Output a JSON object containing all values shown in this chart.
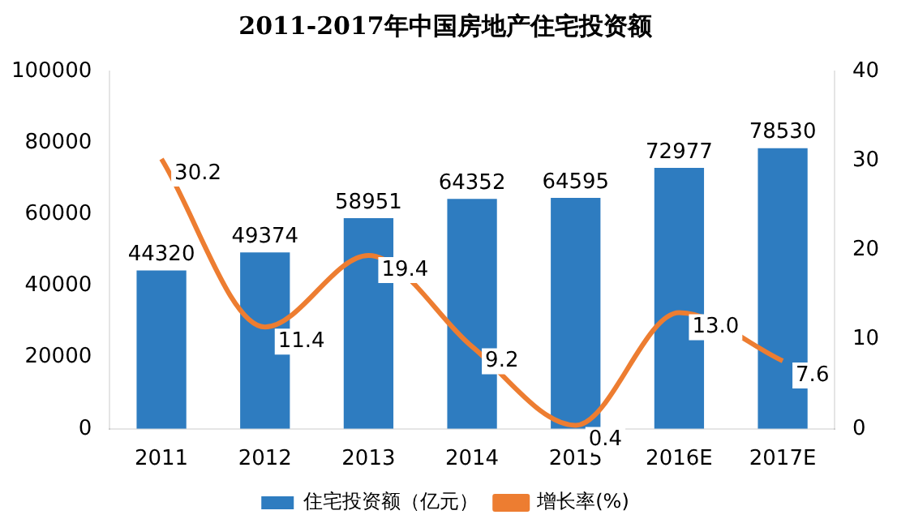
{
  "chart_data": {
    "type": "bar",
    "title": "2011-2017年中国房地产住宅投资额",
    "categories": [
      "2011",
      "2012",
      "2013",
      "2014",
      "2015",
      "2016E",
      "2017E"
    ],
    "series": [
      {
        "name": "住宅投资额（亿元）",
        "color": "#2e7cc0",
        "values": [
          44320,
          49374,
          58951,
          64352,
          64595,
          72977,
          78530
        ],
        "value_labels": [
          "44320",
          "49374",
          "58951",
          "64352",
          "64595",
          "72977",
          "78530"
        ]
      },
      {
        "name": "增长率(%)",
        "type": "line",
        "axis": "y2",
        "color": "#ed7d31",
        "values": [
          30.2,
          11.4,
          19.4,
          9.2,
          0.4,
          13.0,
          7.6
        ],
        "value_labels": [
          "30.2",
          "11.4",
          "19.4",
          "9.2",
          "0.4",
          "13.0",
          "7.6"
        ]
      }
    ],
    "ylim": [
      0,
      100000
    ],
    "yticks": [
      0,
      20000,
      40000,
      60000,
      80000,
      100000
    ],
    "y2lim": [
      0,
      40
    ],
    "y2ticks": [
      0,
      10,
      20,
      30,
      40
    ],
    "grid": false,
    "legend": "bottom",
    "marker": "none"
  }
}
